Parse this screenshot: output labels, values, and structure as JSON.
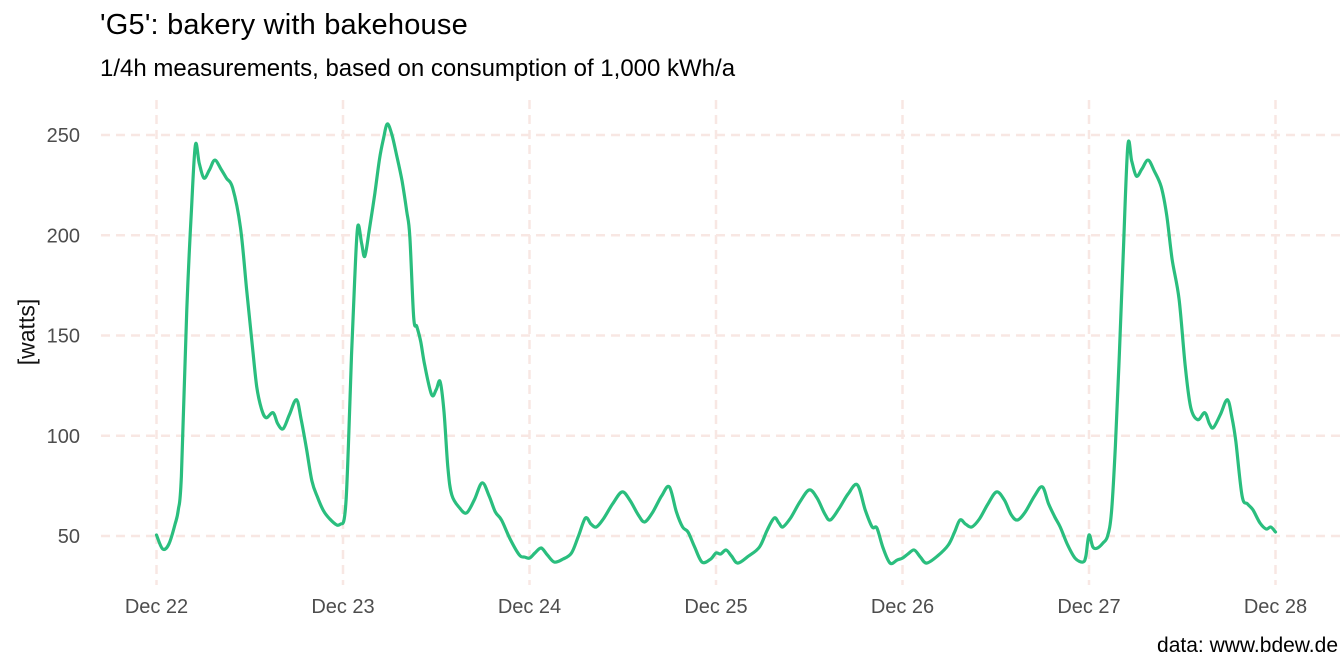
{
  "chart_data": {
    "type": "line",
    "title": "'G5': bakery with bakehouse",
    "subtitle": "1/4h measurements, based on consumption of 1,000 kWh/a",
    "ylabel": "[watts]",
    "caption": "data: www.bdew.de",
    "legend": "none",
    "grid": "major-only, dashed",
    "colors": {
      "line": "#2abe7e",
      "gridline": "#f8e7e3",
      "tick_text": "#4d4d4d",
      "title_text": "#000000"
    },
    "x_tick_labels": [
      "Dec 22",
      "Dec 23",
      "Dec 24",
      "Dec 25",
      "Dec 26",
      "Dec 27",
      "Dec 28"
    ],
    "x_tick_hours": [
      0,
      24,
      48,
      72,
      96,
      120,
      144
    ],
    "y_ticks": [
      50,
      100,
      150,
      200,
      250
    ],
    "x_range_hours": [
      0,
      144
    ],
    "ylim": [
      25,
      267
    ],
    "x_unit": "hours since Dec 22 00:00, 1/4h load profile",
    "y_unit": "watts",
    "series": [
      {
        "name": "G5 bakery load",
        "points": [
          [
            0.0,
            50.5
          ],
          [
            0.8,
            43.5
          ],
          [
            1.6,
            46
          ],
          [
            2.4,
            56
          ],
          [
            2.8,
            63
          ],
          [
            3.2,
            80
          ],
          [
            3.9,
            163
          ],
          [
            4.5,
            213
          ],
          [
            5.0,
            245
          ],
          [
            5.5,
            236
          ],
          [
            6.1,
            228.5
          ],
          [
            6.8,
            232.5
          ],
          [
            7.5,
            237.5
          ],
          [
            8.3,
            233
          ],
          [
            9.0,
            228.5
          ],
          [
            9.8,
            223.5
          ],
          [
            10.8,
            204
          ],
          [
            11.6,
            173
          ],
          [
            12.3,
            146
          ],
          [
            12.9,
            124.5
          ],
          [
            13.5,
            113.5
          ],
          [
            14.1,
            109
          ],
          [
            15.0,
            111.5
          ],
          [
            15.6,
            106
          ],
          [
            16.3,
            103.5
          ],
          [
            17.1,
            110.5
          ],
          [
            18.0,
            118
          ],
          [
            18.6,
            108.5
          ],
          [
            19.3,
            93.5
          ],
          [
            20.0,
            77.5
          ],
          [
            20.7,
            69.5
          ],
          [
            21.5,
            62.5
          ],
          [
            22.3,
            58.5
          ],
          [
            23.2,
            55.5
          ],
          [
            23.7,
            56
          ],
          [
            24.1,
            57.5
          ],
          [
            24.4,
            68
          ],
          [
            24.7,
            95
          ],
          [
            25.1,
            140
          ],
          [
            25.5,
            178
          ],
          [
            25.9,
            204.5
          ],
          [
            26.4,
            196
          ],
          [
            26.8,
            189.5
          ],
          [
            27.4,
            203
          ],
          [
            28.1,
            221
          ],
          [
            28.7,
            238
          ],
          [
            29.2,
            248
          ],
          [
            29.7,
            255.5
          ],
          [
            30.3,
            250
          ],
          [
            30.9,
            240
          ],
          [
            31.6,
            227
          ],
          [
            32.2,
            212
          ],
          [
            32.6,
            199.5
          ],
          [
            33.1,
            159
          ],
          [
            33.5,
            154.5
          ],
          [
            34.0,
            147
          ],
          [
            34.5,
            135.5
          ],
          [
            35.4,
            120.5
          ],
          [
            36.0,
            123
          ],
          [
            36.5,
            127
          ],
          [
            37.0,
            112
          ],
          [
            37.5,
            84
          ],
          [
            38.0,
            70.5
          ],
          [
            39.0,
            64
          ],
          [
            39.9,
            61.5
          ],
          [
            40.9,
            68
          ],
          [
            41.9,
            76.5
          ],
          [
            42.8,
            70
          ],
          [
            43.6,
            62
          ],
          [
            44.4,
            58
          ],
          [
            45.5,
            48.5
          ],
          [
            46.7,
            40.5
          ],
          [
            47.4,
            39.5
          ],
          [
            48.0,
            39
          ],
          [
            48.7,
            41.5
          ],
          [
            49.5,
            44
          ],
          [
            50.3,
            40.5
          ],
          [
            51.2,
            37
          ],
          [
            52.3,
            38.5
          ],
          [
            53.4,
            41.5
          ],
          [
            54.3,
            50
          ],
          [
            55.2,
            59
          ],
          [
            55.9,
            56
          ],
          [
            56.6,
            54.5
          ],
          [
            57.5,
            58.5
          ],
          [
            58.7,
            66
          ],
          [
            59.9,
            72
          ],
          [
            60.9,
            68
          ],
          [
            62.0,
            60.5
          ],
          [
            62.8,
            57
          ],
          [
            63.8,
            61.5
          ],
          [
            65.0,
            70
          ],
          [
            66.0,
            74.5
          ],
          [
            66.9,
            62
          ],
          [
            67.7,
            54.5
          ],
          [
            68.4,
            52
          ],
          [
            69.2,
            45
          ],
          [
            70.2,
            37
          ],
          [
            71.3,
            38.5
          ],
          [
            72.0,
            41.5
          ],
          [
            72.6,
            41
          ],
          [
            73.3,
            43
          ],
          [
            74.0,
            40
          ],
          [
            74.8,
            36.5
          ],
          [
            76.2,
            40
          ],
          [
            77.6,
            44.5
          ],
          [
            78.6,
            53
          ],
          [
            79.5,
            59
          ],
          [
            80.1,
            56.5
          ],
          [
            80.6,
            54.5
          ],
          [
            81.6,
            59
          ],
          [
            82.8,
            67
          ],
          [
            84.0,
            73
          ],
          [
            85.0,
            69
          ],
          [
            86.0,
            61
          ],
          [
            86.7,
            58
          ],
          [
            87.8,
            63.5
          ],
          [
            89.0,
            71
          ],
          [
            90.2,
            75.5
          ],
          [
            91.2,
            63
          ],
          [
            92.1,
            54.5
          ],
          [
            92.7,
            54
          ],
          [
            93.5,
            44
          ],
          [
            94.4,
            36.5
          ],
          [
            95.3,
            38
          ],
          [
            96.0,
            39
          ],
          [
            96.7,
            41
          ],
          [
            97.5,
            43
          ],
          [
            98.3,
            39.5
          ],
          [
            99.1,
            36.5
          ],
          [
            100.5,
            40
          ],
          [
            101.9,
            45.5
          ],
          [
            102.7,
            52
          ],
          [
            103.4,
            58
          ],
          [
            104.1,
            56
          ],
          [
            104.9,
            54.5
          ],
          [
            105.9,
            58.5
          ],
          [
            107.0,
            66
          ],
          [
            108.1,
            72
          ],
          [
            109.1,
            68
          ],
          [
            110.0,
            60.5
          ],
          [
            110.8,
            58
          ],
          [
            111.8,
            62
          ],
          [
            113.0,
            70
          ],
          [
            114.0,
            74.5
          ],
          [
            114.8,
            66
          ],
          [
            115.6,
            59.5
          ],
          [
            116.3,
            54.5
          ],
          [
            117.2,
            46
          ],
          [
            118.2,
            39
          ],
          [
            119.2,
            37
          ],
          [
            119.6,
            40
          ],
          [
            120.0,
            50.5
          ],
          [
            120.5,
            44.5
          ],
          [
            121.1,
            44
          ],
          [
            121.8,
            46.5
          ],
          [
            122.4,
            50
          ],
          [
            122.9,
            62
          ],
          [
            123.4,
            95
          ],
          [
            123.9,
            140
          ],
          [
            124.4,
            190
          ],
          [
            125.0,
            244.5
          ],
          [
            125.5,
            237
          ],
          [
            126.1,
            229.5
          ],
          [
            126.8,
            233
          ],
          [
            127.6,
            237.5
          ],
          [
            128.4,
            232
          ],
          [
            129.3,
            224
          ],
          [
            130.0,
            210
          ],
          [
            130.7,
            188
          ],
          [
            131.6,
            168
          ],
          [
            132.4,
            134
          ],
          [
            133.1,
            114
          ],
          [
            134.0,
            108
          ],
          [
            134.9,
            111.5
          ],
          [
            135.5,
            106
          ],
          [
            136.0,
            104
          ],
          [
            136.9,
            110.5
          ],
          [
            137.8,
            118
          ],
          [
            138.4,
            109
          ],
          [
            138.9,
            97
          ],
          [
            139.7,
            70
          ],
          [
            140.4,
            66
          ],
          [
            141.1,
            63
          ],
          [
            142.0,
            56.5
          ],
          [
            142.8,
            53.5
          ],
          [
            143.4,
            54.5
          ],
          [
            144.0,
            52
          ]
        ]
      }
    ]
  }
}
